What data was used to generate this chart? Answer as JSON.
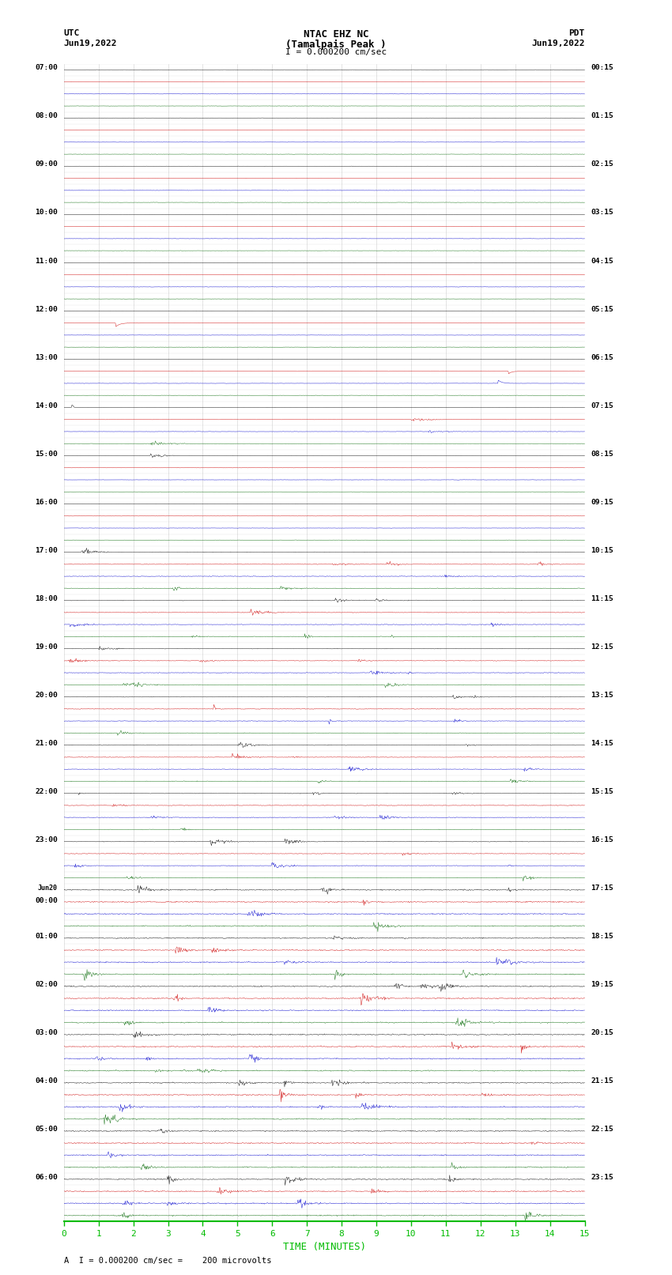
{
  "title_line1": "NTAC EHZ NC",
  "title_line2": "(Tamalpais Peak )",
  "scale_label": "I = 0.000200 cm/sec",
  "left_header_line1": "UTC",
  "left_header_line2": "Jun19,2022",
  "right_header_line1": "PDT",
  "right_header_line2": "Jun19,2022",
  "footer_label": "A  I = 0.000200 cm/sec =    200 microvolts",
  "xlabel": "TIME (MINUTES)",
  "xtick_values": [
    0,
    1,
    2,
    3,
    4,
    5,
    6,
    7,
    8,
    9,
    10,
    11,
    12,
    13,
    14,
    15
  ],
  "background_color": "#ffffff",
  "grid_color": "#aaaaaa",
  "bottom_axis_color": "#00bb00",
  "bottom_tick_color": "#00bb00",
  "trace_colors": [
    "#000000",
    "#cc0000",
    "#0000cc",
    "#006600"
  ],
  "num_trace_rows": 96,
  "samples_per_row": 900,
  "left_labels": [
    "07:00",
    "08:00",
    "09:00",
    "10:00",
    "11:00",
    "12:00",
    "13:00",
    "14:00",
    "15:00",
    "16:00",
    "17:00",
    "18:00",
    "19:00",
    "20:00",
    "21:00",
    "22:00",
    "23:00",
    "Jun20",
    "00:00",
    "01:00",
    "02:00",
    "03:00",
    "04:00",
    "05:00",
    "06:00"
  ],
  "right_labels": [
    "00:15",
    "01:15",
    "02:15",
    "03:15",
    "04:15",
    "05:15",
    "06:15",
    "07:15",
    "08:15",
    "09:15",
    "10:15",
    "11:15",
    "12:15",
    "13:15",
    "14:15",
    "15:15",
    "16:15",
    "17:15",
    "18:15",
    "19:15",
    "20:15",
    "21:15",
    "22:15",
    "23:15"
  ],
  "noise_profile": {
    "quiet_hours": [
      0,
      1,
      2,
      3,
      4,
      5,
      6,
      7,
      8,
      9
    ],
    "moderate_hours": [
      10,
      11,
      12,
      13,
      14,
      15,
      16
    ],
    "active_hours": [
      17,
      18,
      19,
      20,
      21,
      22,
      23
    ],
    "quiet_amp": 0.01,
    "moderate_amp": 0.02,
    "active_amp": 0.04
  }
}
